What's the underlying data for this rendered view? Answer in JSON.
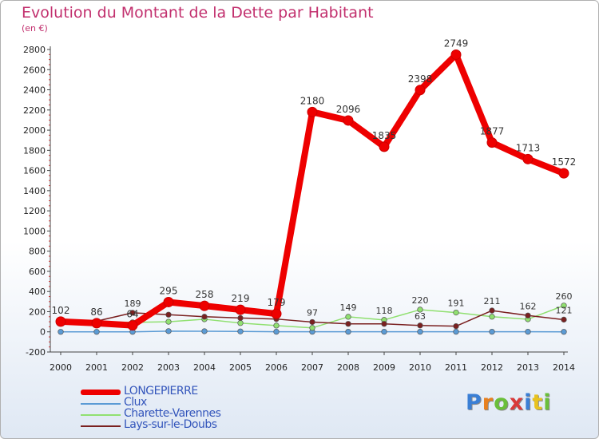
{
  "header": {
    "title": "Evolution du Montant de la Dette par Habitant",
    "subtitle": "(en €)"
  },
  "logo": {
    "text": "Proxiti",
    "colors": [
      "#3a7fd5",
      "#e8801e",
      "#6abf3a",
      "#d93a3a",
      "#3a7fd5",
      "#e8c21e",
      "#6abf3a"
    ]
  },
  "chart_data": {
    "type": "line",
    "title": "Evolution du Montant de la Dette par Habitant",
    "subtitle": "(en €)",
    "x": [
      "2000",
      "2001",
      "2002",
      "2003",
      "2004",
      "2005",
      "2006",
      "2007",
      "2008",
      "2009",
      "2010",
      "2011",
      "2012",
      "2013",
      "2014"
    ],
    "ylim": [
      -200,
      2800
    ],
    "yticks": [
      "-200",
      "0",
      "200",
      "400",
      "600",
      "800",
      "1000",
      "1200",
      "1400",
      "1600",
      "1800",
      "2000",
      "2200",
      "2400",
      "2600",
      "2800"
    ],
    "grid": false,
    "legend_position": "bottom-left",
    "series": [
      {
        "name": "LONGEPIERRE",
        "color": "#ee0000",
        "values": [
          102,
          86,
          64,
          295,
          258,
          219,
          179,
          2180,
          2096,
          1835,
          2398,
          2749,
          1877,
          1713,
          1572
        ],
        "labels": [
          "102",
          "86",
          "64",
          "295",
          "258",
          "219",
          "179",
          "2180",
          "2096",
          "1835",
          "2398",
          "2749",
          "1877",
          "1713",
          "1572"
        ]
      },
      {
        "name": "Clux",
        "color": "#5b9bd5",
        "values": [
          0,
          0,
          0,
          7,
          6,
          4,
          1,
          1,
          1,
          1,
          1,
          1,
          1,
          1,
          0
        ],
        "labels": []
      },
      {
        "name": "Charette-Varennes",
        "color": "#90e070",
        "values": [
          115,
          100,
          94,
          100,
          125,
          87,
          62,
          39,
          149,
          118,
          220,
          191,
          150,
          125,
          260
        ],
        "labels": [
          "",
          "",
          "",
          "",
          "",
          "",
          "",
          "",
          "149",
          "118",
          "220",
          "191",
          "",
          "",
          "260"
        ]
      },
      {
        "name": "Lays-sur-le-Doubs",
        "color": "#7a2020",
        "values": [
          122,
          106,
          189,
          170,
          150,
          137,
          127,
          97,
          79,
          79,
          63,
          56,
          211,
          162,
          121
        ],
        "labels": [
          "",
          "",
          "189",
          "",
          "",
          "",
          "",
          "97",
          "",
          "",
          "63",
          "",
          "211",
          "162",
          "121"
        ]
      }
    ]
  }
}
